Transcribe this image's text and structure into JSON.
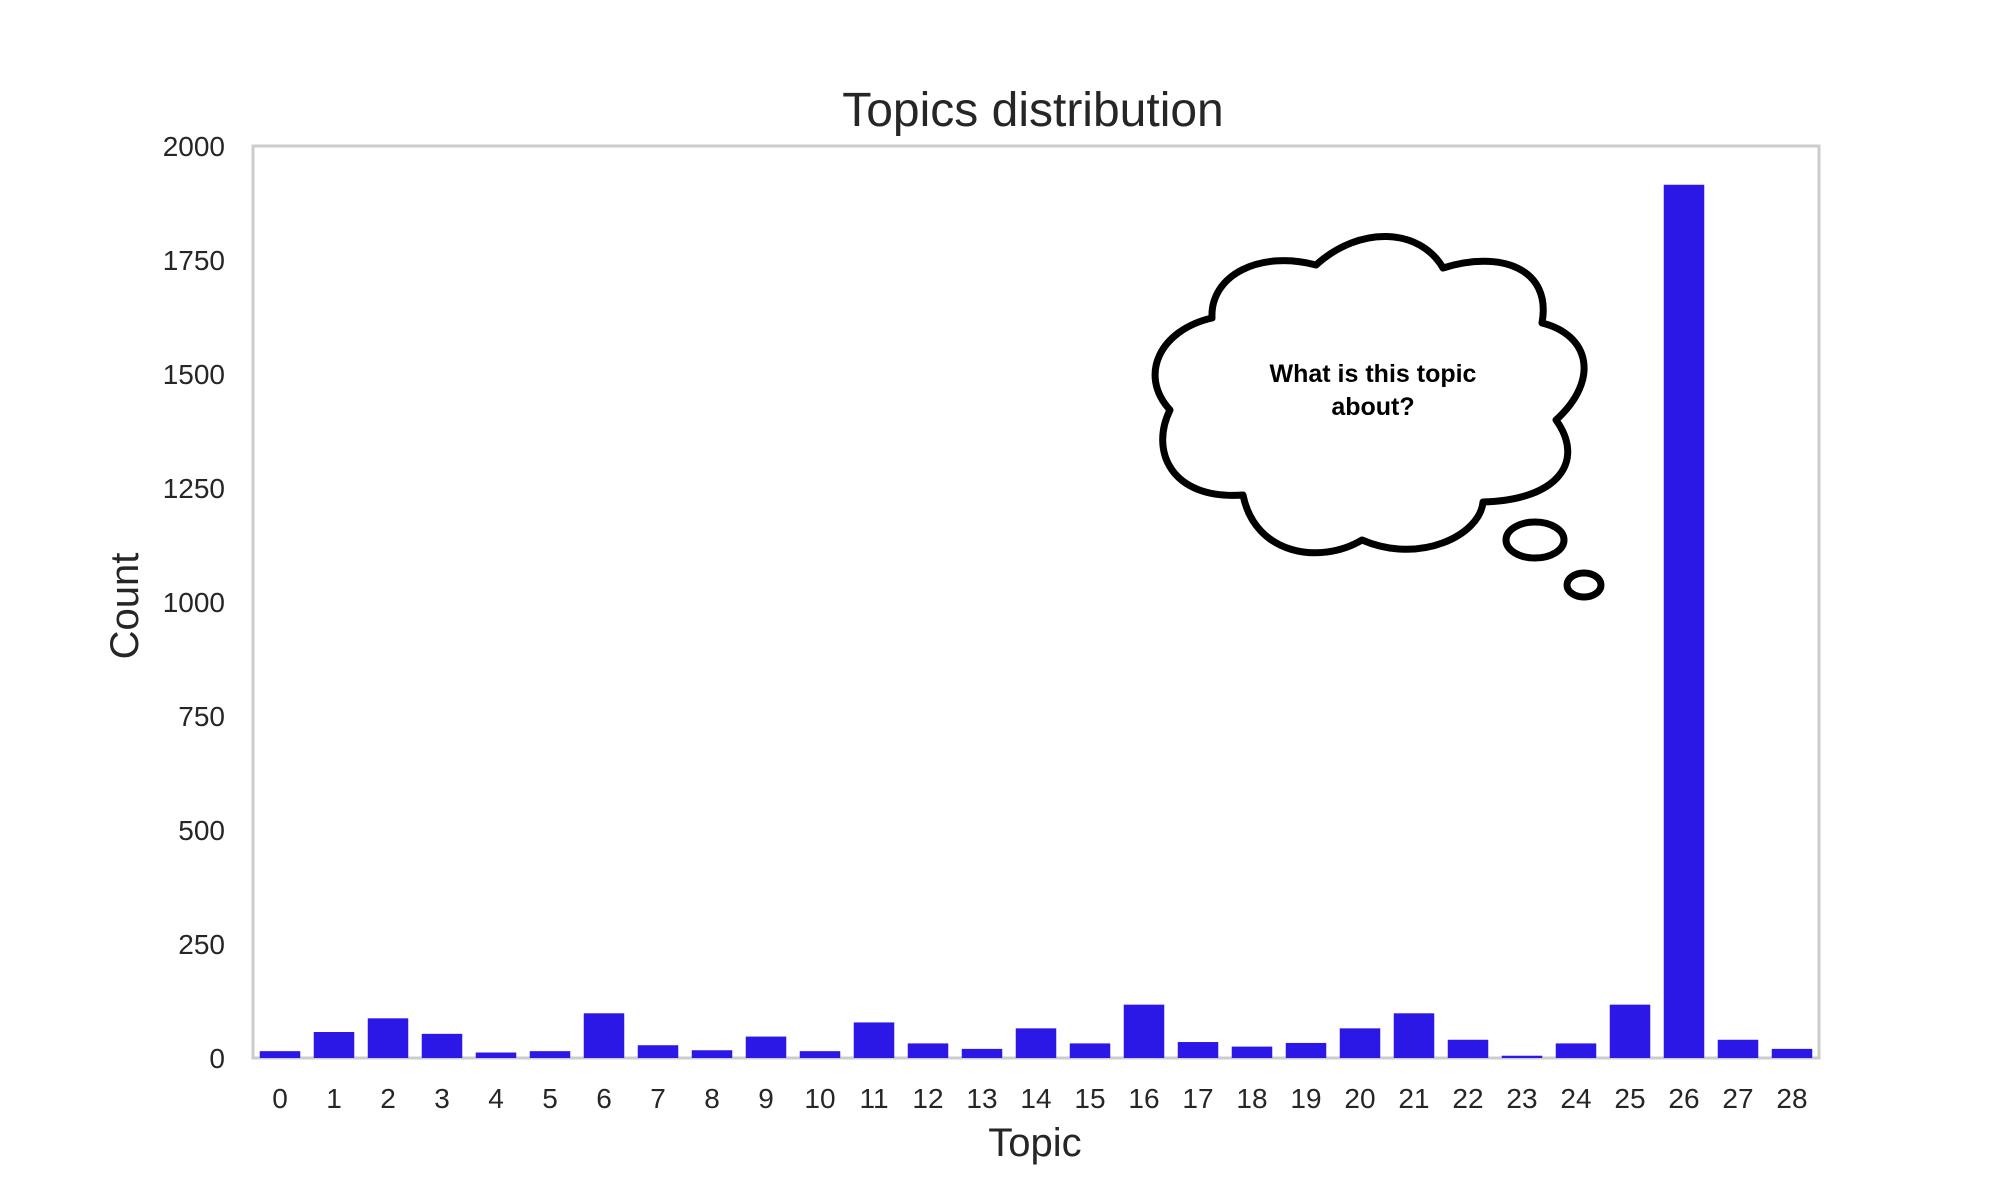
{
  "chart_data": {
    "type": "bar",
    "title": "Topics distribution",
    "xlabel": "Topic",
    "ylabel": "Count",
    "categories": [
      "0",
      "1",
      "2",
      "3",
      "4",
      "5",
      "6",
      "7",
      "8",
      "9",
      "10",
      "11",
      "12",
      "13",
      "14",
      "15",
      "16",
      "17",
      "18",
      "19",
      "20",
      "21",
      "22",
      "23",
      "24",
      "25",
      "26",
      "27",
      "28"
    ],
    "values": [
      15,
      57,
      87,
      53,
      12,
      15,
      98,
      28,
      17,
      47,
      15,
      78,
      32,
      20,
      65,
      32,
      117,
      35,
      25,
      33,
      65,
      98,
      40,
      5,
      32,
      117,
      1915,
      40,
      20
    ],
    "ylim": [
      0,
      2000
    ],
    "yticks": [
      0,
      250,
      500,
      750,
      1000,
      1250,
      1500,
      1750,
      2000
    ],
    "grid": false,
    "bar_color": "#2b17e6",
    "annotation": {
      "line1": "What is this topic",
      "line2": "about?"
    }
  }
}
